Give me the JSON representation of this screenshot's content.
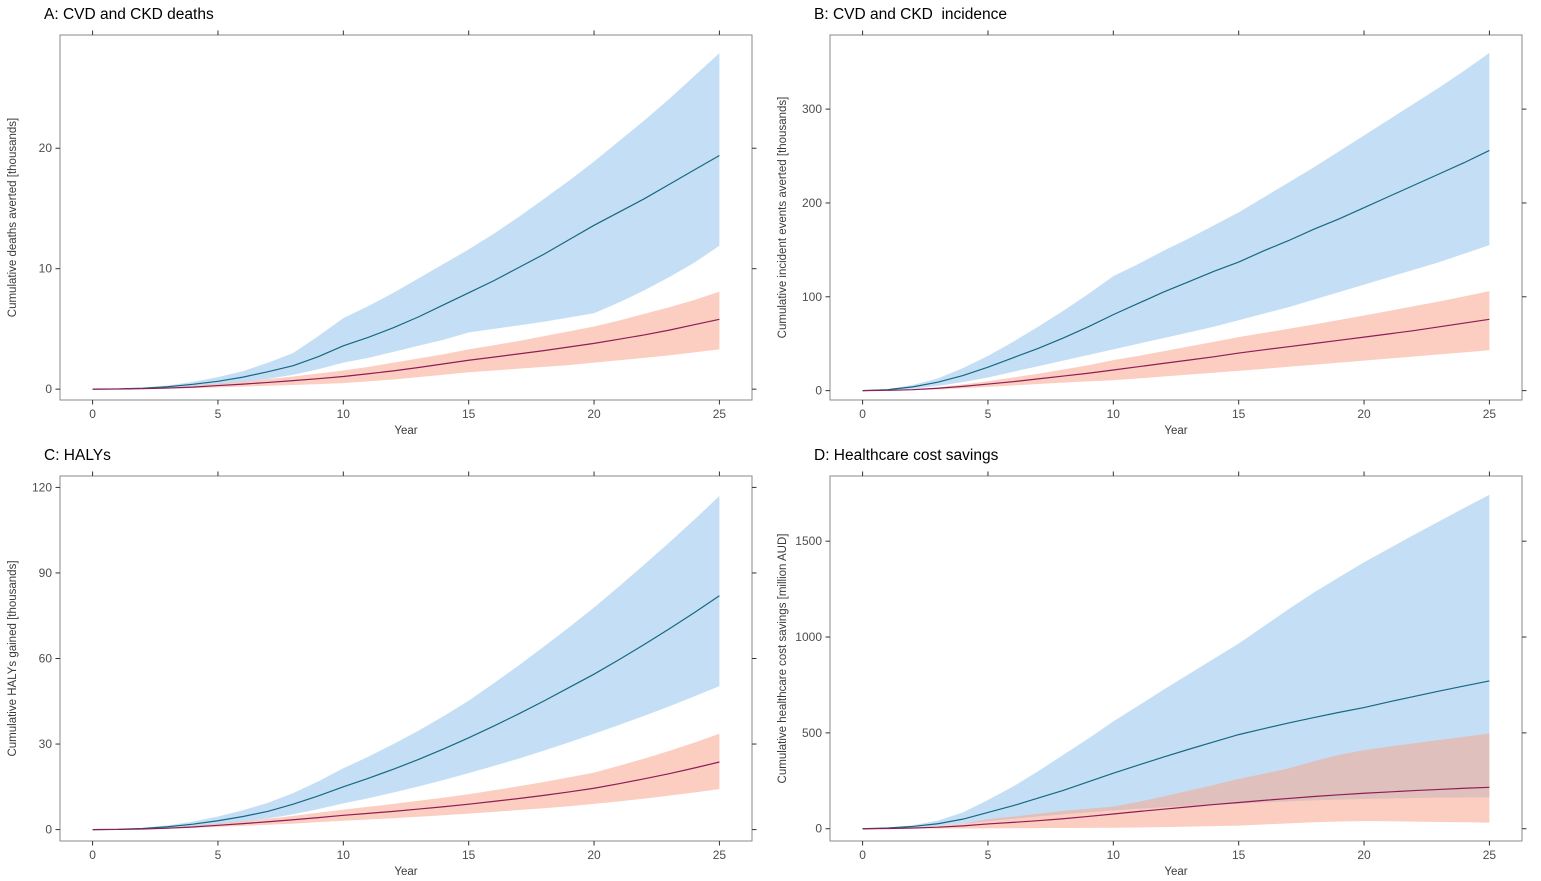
{
  "style": {
    "background": "#FFFFFF",
    "panel_border_color": "#8A8A8A",
    "tick_color": "#333333",
    "tick_label_color": "#4D4D4D",
    "axis_title_color": "#3A3A3A",
    "title_color": "#000000",
    "band_opacity": 0.55,
    "line_blue": "#176881",
    "line_red": "#8F1D56",
    "band_blue": "#93C5ED",
    "band_red": "#F7A68E"
  },
  "chart_data": [
    {
      "id": "A",
      "type": "line",
      "title": "A: CVD and CKD deaths",
      "xlabel": "Year",
      "ylabel": "Cumulative deaths averted [thousands]",
      "xlim": [
        -1.3,
        26.3
      ],
      "ylim": [
        -0.9,
        29.4
      ],
      "xticks": [
        0,
        5,
        10,
        15,
        20,
        25
      ],
      "yticks": [
        0,
        10,
        20
      ],
      "grid": false,
      "legend": "none",
      "x": [
        0,
        1,
        2,
        3,
        4,
        5,
        6,
        7,
        8,
        9,
        10,
        11,
        12,
        13,
        14,
        15,
        16,
        17,
        18,
        19,
        20,
        21,
        22,
        23,
        24,
        25
      ],
      "series": [
        {
          "name": "blue-scenario",
          "line_color": "#176881",
          "band_color": "#93C5ED",
          "mean": [
            0,
            0.02,
            0.08,
            0.2,
            0.4,
            0.65,
            1.0,
            1.45,
            1.95,
            2.7,
            3.6,
            4.3,
            5.1,
            6.0,
            7.0,
            8.0,
            9.0,
            10.1,
            11.2,
            12.4,
            13.6,
            14.7,
            15.8,
            17.0,
            18.2,
            19.4
          ],
          "upper": [
            0,
            0.03,
            0.12,
            0.3,
            0.6,
            1.0,
            1.5,
            2.2,
            3.0,
            4.4,
            5.9,
            6.9,
            8.0,
            9.2,
            10.4,
            11.6,
            12.9,
            14.3,
            15.8,
            17.3,
            18.9,
            20.6,
            22.3,
            24.1,
            26.0,
            27.9
          ],
          "lower": [
            0,
            0.01,
            0.05,
            0.12,
            0.25,
            0.4,
            0.6,
            0.85,
            1.2,
            1.65,
            2.2,
            2.6,
            3.1,
            3.6,
            4.1,
            4.7,
            5.0,
            5.3,
            5.6,
            5.95,
            6.3,
            7.2,
            8.2,
            9.3,
            10.5,
            11.9
          ]
        },
        {
          "name": "red-scenario",
          "line_color": "#8F1D56",
          "band_color": "#F7A68E",
          "mean": [
            0,
            0.01,
            0.04,
            0.09,
            0.17,
            0.3,
            0.42,
            0.56,
            0.71,
            0.87,
            1.05,
            1.28,
            1.52,
            1.8,
            2.1,
            2.4,
            2.66,
            2.93,
            3.2,
            3.5,
            3.8,
            4.15,
            4.5,
            4.9,
            5.35,
            5.8
          ],
          "upper": [
            0,
            0.02,
            0.06,
            0.14,
            0.27,
            0.45,
            0.63,
            0.83,
            1.05,
            1.3,
            1.55,
            1.85,
            2.2,
            2.55,
            2.9,
            3.3,
            3.65,
            4.0,
            4.4,
            4.8,
            5.2,
            5.7,
            6.25,
            6.8,
            7.4,
            8.1
          ],
          "lower": [
            0,
            0,
            0.02,
            0.05,
            0.09,
            0.15,
            0.21,
            0.28,
            0.35,
            0.42,
            0.5,
            0.65,
            0.8,
            1.0,
            1.2,
            1.4,
            1.55,
            1.7,
            1.85,
            2.0,
            2.2,
            2.4,
            2.6,
            2.8,
            3.05,
            3.3
          ]
        }
      ]
    },
    {
      "id": "B",
      "type": "line",
      "title": "B: CVD and CKD  incidence",
      "xlabel": "Year",
      "ylabel": "Cumulative incident events averted [thousands]",
      "xlim": [
        -1.3,
        26.3
      ],
      "ylim": [
        -10,
        379
      ],
      "xticks": [
        0,
        5,
        10,
        15,
        20,
        25
      ],
      "yticks": [
        0,
        100,
        200,
        300
      ],
      "grid": false,
      "legend": "none",
      "x": [
        0,
        1,
        2,
        3,
        4,
        5,
        6,
        7,
        8,
        9,
        10,
        11,
        12,
        13,
        14,
        15,
        16,
        17,
        18,
        19,
        20,
        21,
        22,
        23,
        24,
        25
      ],
      "series": [
        {
          "name": "blue-scenario",
          "line_color": "#176881",
          "band_color": "#93C5ED",
          "mean": [
            0,
            1,
            4,
            9,
            16,
            25,
            35,
            45,
            56,
            68,
            81,
            93,
            105,
            116,
            127,
            137,
            149,
            160,
            172,
            183,
            195,
            207,
            219,
            231,
            243,
            256
          ],
          "upper": [
            0,
            1.5,
            6,
            13,
            24,
            37,
            52,
            68,
            85,
            103,
            122,
            135,
            149,
            162,
            176,
            190,
            206,
            222,
            238,
            255,
            272,
            289,
            306,
            323,
            341,
            360
          ],
          "lower": [
            0,
            0.5,
            2,
            5,
            9,
            14,
            20,
            26,
            32,
            38,
            44,
            50,
            56,
            62,
            68,
            75,
            82,
            89,
            97,
            105,
            113,
            121,
            129,
            137,
            146,
            155
          ]
        },
        {
          "name": "red-scenario",
          "line_color": "#8F1D56",
          "band_color": "#F7A68E",
          "mean": [
            0,
            0.3,
            1,
            2.5,
            4.5,
            7,
            9.5,
            12.5,
            15.5,
            18.5,
            22,
            25.5,
            29,
            32.5,
            36,
            40,
            43.5,
            46.8,
            50.2,
            53.6,
            57,
            60.5,
            64,
            68,
            72,
            76
          ],
          "upper": [
            0,
            0.5,
            1.5,
            3.5,
            6.5,
            10,
            14,
            18,
            22.5,
            27,
            32.5,
            37,
            42,
            47,
            52,
            57,
            61.5,
            66,
            70.5,
            75.2,
            80,
            85,
            90,
            95,
            100.5,
            106
          ],
          "lower": [
            0,
            0.1,
            0.5,
            1.2,
            2.5,
            4,
            5.5,
            7,
            8.5,
            9.8,
            11,
            13,
            15,
            17,
            19,
            21,
            23.2,
            25.4,
            27.6,
            29.8,
            32,
            34.2,
            36.4,
            38.6,
            40.8,
            43
          ]
        }
      ]
    },
    {
      "id": "C",
      "type": "line",
      "title": "C: HALYs",
      "xlabel": "Year",
      "ylabel": "Cumulative HALYs gained [thousands]",
      "xlim": [
        -1.3,
        26.3
      ],
      "ylim": [
        -4,
        124
      ],
      "xticks": [
        0,
        5,
        10,
        15,
        20,
        25
      ],
      "yticks": [
        0,
        30,
        60,
        90,
        120
      ],
      "grid": false,
      "legend": "none",
      "x": [
        0,
        1,
        2,
        3,
        4,
        5,
        6,
        7,
        8,
        9,
        10,
        11,
        12,
        13,
        14,
        15,
        16,
        17,
        18,
        19,
        20,
        21,
        22,
        23,
        24,
        25
      ],
      "series": [
        {
          "name": "blue-scenario",
          "line_color": "#176881",
          "band_color": "#93C5ED",
          "mean": [
            0,
            0.1,
            0.4,
            1.0,
            1.9,
            3.1,
            4.6,
            6.4,
            8.9,
            11.8,
            15.0,
            18.0,
            21.2,
            24.6,
            28.3,
            32.2,
            36.3,
            40.6,
            45.1,
            49.8,
            54.5,
            59.6,
            64.9,
            70.4,
            76.1,
            82
          ],
          "upper": [
            0,
            0.15,
            0.6,
            1.5,
            2.8,
            4.6,
            6.8,
            9.4,
            12.8,
            16.9,
            21.5,
            25.6,
            30,
            34.7,
            39.8,
            45.2,
            51.3,
            57.6,
            64.2,
            70.9,
            77.9,
            85.3,
            92.9,
            100.7,
            108.7,
            117
          ],
          "lower": [
            0,
            0.06,
            0.25,
            0.6,
            1.1,
            1.9,
            2.8,
            3.9,
            5.4,
            7.2,
            9.2,
            11,
            13,
            15.1,
            17.4,
            19.8,
            22.3,
            24.9,
            27.7,
            30.6,
            33.6,
            36.7,
            39.9,
            43.2,
            46.7,
            50.3
          ]
        },
        {
          "name": "red-scenario",
          "line_color": "#8F1D56",
          "band_color": "#F7A68E",
          "mean": [
            0,
            0.05,
            0.2,
            0.5,
            0.9,
            1.5,
            2.1,
            2.75,
            3.45,
            4.2,
            5,
            5.7,
            6.4,
            7.2,
            8,
            8.9,
            9.9,
            10.9,
            12,
            13.2,
            14.5,
            16.1,
            17.8,
            19.6,
            21.6,
            23.7
          ],
          "upper": [
            0,
            0.08,
            0.3,
            0.7,
            1.3,
            2.1,
            2.9,
            3.8,
            4.8,
            5.9,
            7,
            8,
            9,
            10.1,
            11.2,
            12.4,
            13.8,
            15.2,
            16.7,
            18.3,
            20,
            22.4,
            24.9,
            27.6,
            30.5,
            33.6
          ],
          "lower": [
            0,
            0.03,
            0.12,
            0.3,
            0.6,
            0.95,
            1.3,
            1.7,
            2.1,
            2.6,
            3.1,
            3.55,
            4,
            4.5,
            5.05,
            5.6,
            6.2,
            6.85,
            7.5,
            8.2,
            9,
            9.9,
            10.85,
            11.9,
            13,
            14.2
          ]
        }
      ]
    },
    {
      "id": "D",
      "type": "line",
      "title": "D: Healthcare cost savings",
      "xlabel": "Year",
      "ylabel": "Cumulative healthcare cost savings [million AUD]",
      "xlim": [
        -1.3,
        26.3
      ],
      "ylim": [
        -64,
        1840
      ],
      "xticks": [
        0,
        5,
        10,
        15,
        20,
        25
      ],
      "yticks": [
        0,
        500,
        1000,
        1500
      ],
      "grid": false,
      "legend": "none",
      "x": [
        0,
        1,
        2,
        3,
        4,
        5,
        6,
        7,
        8,
        9,
        10,
        11,
        12,
        13,
        14,
        15,
        16,
        17,
        18,
        19,
        20,
        21,
        22,
        23,
        24,
        25
      ],
      "series": [
        {
          "name": "blue-scenario",
          "line_color": "#176881",
          "band_color": "#93C5ED",
          "mean": [
            0,
            4,
            12,
            26,
            50,
            85,
            120,
            160,
            200,
            245,
            290,
            332,
            374,
            414,
            453,
            491,
            522,
            552,
            580,
            607,
            632,
            662,
            690,
            718,
            745,
            771
          ],
          "upper": [
            0,
            5,
            18,
            42,
            85,
            150,
            220,
            300,
            385,
            470,
            560,
            642,
            725,
            806,
            886,
            966,
            1056,
            1146,
            1232,
            1312,
            1390,
            1462,
            1534,
            1604,
            1674,
            1742
          ],
          "lower": [
            0,
            2,
            7,
            15,
            26,
            40,
            52,
            64,
            75,
            86,
            95,
            104,
            112,
            119,
            125,
            130,
            137,
            143,
            148,
            152,
            155,
            158,
            160,
            162,
            163,
            164
          ]
        },
        {
          "name": "red-scenario",
          "line_color": "#8F1D56",
          "band_color": "#F7A68E",
          "mean": [
            0,
            1,
            4,
            8,
            15,
            25,
            33,
            42,
            52,
            64,
            77,
            90,
            102,
            114,
            126,
            137,
            148,
            158,
            168,
            177,
            185,
            192,
            199,
            205,
            211,
            216
          ],
          "upper": [
            0,
            2,
            6,
            14,
            26,
            50,
            63,
            78,
            94,
            104,
            115,
            140,
            168,
            198,
            228,
            260,
            287,
            315,
            352,
            385,
            410,
            428,
            446,
            463,
            480,
            497
          ],
          "lower": [
            0,
            0,
            0.5,
            1,
            1.5,
            2,
            2.5,
            3,
            3.5,
            4.2,
            5,
            6.5,
            8.5,
            11,
            13.5,
            16,
            22,
            28,
            34,
            38,
            40,
            39,
            37,
            35,
            33.5,
            32
          ]
        }
      ]
    }
  ]
}
